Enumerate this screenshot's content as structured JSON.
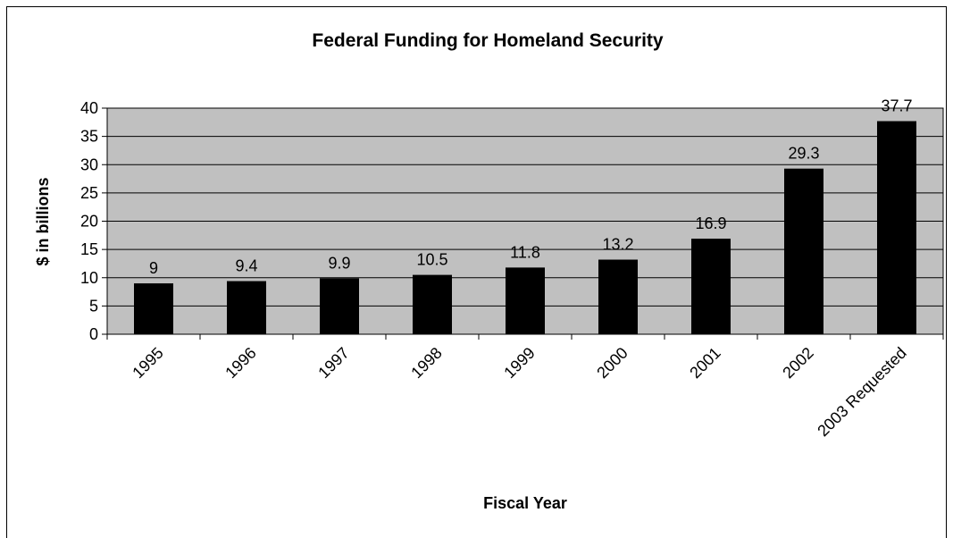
{
  "chart_data": {
    "type": "bar",
    "title": "Federal Funding for Homeland Security",
    "xlabel": "Fiscal Year",
    "ylabel": "$ in billions",
    "categories": [
      "1995",
      "1996",
      "1997",
      "1998",
      "1999",
      "2000",
      "2001",
      "2002",
      "2003 Requested"
    ],
    "values": [
      9,
      9.4,
      9.9,
      10.5,
      11.8,
      13.2,
      16.9,
      29.3,
      37.7
    ],
    "data_labels": [
      "9",
      "9.4",
      "9.9",
      "10.5",
      "11.8",
      "13.2",
      "16.9",
      "29.3",
      "37.7"
    ],
    "yticks": [
      "0",
      "5",
      "10",
      "15",
      "20",
      "25",
      "30",
      "35",
      "40"
    ],
    "ylim": [
      0,
      40
    ],
    "grid": true,
    "legend": "none",
    "colors": {
      "plot_background": "#c0c0c0",
      "bar": "#000000",
      "gridline": "#000000"
    }
  }
}
